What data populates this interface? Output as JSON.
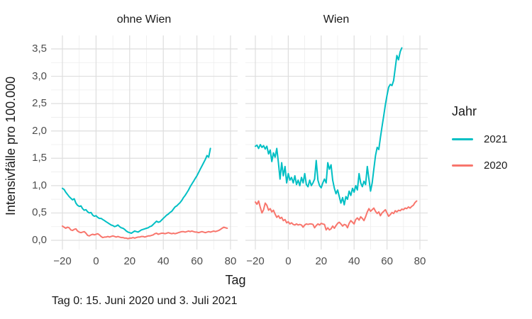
{
  "chart_data": {
    "type": "line",
    "xlabel": "Tag",
    "ylabel": "Intensivfälle pro 100.000",
    "caption": "Tag 0: 15. Juni 2020 und 3. Juli 2021",
    "x_ticks": [
      -20,
      0,
      20,
      40,
      60,
      80
    ],
    "x_tick_labels": [
      "−20",
      "0",
      "20",
      "40",
      "60",
      "80"
    ],
    "y_ticks": [
      0,
      0.5,
      1,
      1.5,
      2,
      2.5,
      3,
      3.5
    ],
    "y_tick_labels": [
      "0,0",
      "0,5",
      "1,0",
      "1,5",
      "2,0",
      "2,5",
      "3,0",
      "3,5"
    ],
    "xlim": [
      -26,
      84
    ],
    "ylim": [
      -0.17,
      3.72
    ],
    "grid": true,
    "style": {
      "background": "#FFFFFF",
      "grid_major_color": "#DEDEDE",
      "grid_minor_color": "#EDEDED",
      "axis_text_color": "#4D4D4D",
      "text_color": "#1A1A1A"
    },
    "legend": {
      "title": "Jahr",
      "position": "right",
      "entries": [
        {
          "label": "2021",
          "color": "#00BFC4"
        },
        {
          "label": "2020",
          "color": "#F8766D"
        }
      ]
    },
    "facets": [
      {
        "label": "ohne Wien",
        "series": [
          {
            "name": "2021",
            "color": "#00BFC4",
            "x_start": -20,
            "values": [
              0.95,
              0.93,
              0.88,
              0.84,
              0.8,
              0.77,
              0.74,
              0.76,
              0.68,
              0.64,
              0.62,
              0.63,
              0.58,
              0.55,
              0.56,
              0.52,
              0.5,
              0.51,
              0.46,
              0.44,
              0.45,
              0.42,
              0.4,
              0.4,
              0.38,
              0.36,
              0.34,
              0.32,
              0.3,
              0.28,
              0.27,
              0.25,
              0.26,
              0.28,
              0.25,
              0.23,
              0.22,
              0.2,
              0.17,
              0.15,
              0.14,
              0.13,
              0.15,
              0.17,
              0.16,
              0.15,
              0.17,
              0.19,
              0.2,
              0.21,
              0.22,
              0.23,
              0.25,
              0.26,
              0.29,
              0.32,
              0.35,
              0.33,
              0.34,
              0.37,
              0.4,
              0.43,
              0.46,
              0.48,
              0.51,
              0.53,
              0.57,
              0.61,
              0.63,
              0.66,
              0.69,
              0.73,
              0.78,
              0.82,
              0.87,
              0.92,
              0.98,
              1.03,
              1.08,
              1.13,
              1.18,
              1.24,
              1.3,
              1.36,
              1.42,
              1.48,
              1.55,
              1.52,
              1.68
            ]
          },
          {
            "name": "2020",
            "color": "#F8766D",
            "x_start": -20,
            "values": [
              0.26,
              0.24,
              0.22,
              0.24,
              0.23,
              0.19,
              0.18,
              0.2,
              0.21,
              0.17,
              0.15,
              0.14,
              0.15,
              0.16,
              0.13,
              0.09,
              0.08,
              0.1,
              0.11,
              0.1,
              0.11,
              0.12,
              0.1,
              0.07,
              0.05,
              0.06,
              0.06,
              0.07,
              0.06,
              0.07,
              0.08,
              0.07,
              0.06,
              0.07,
              0.06,
              0.05,
              0.05,
              0.04,
              0.04,
              0.03,
              0.04,
              0.04,
              0.05,
              0.04,
              0.05,
              0.06,
              0.06,
              0.07,
              0.07,
              0.06,
              0.07,
              0.08,
              0.08,
              0.09,
              0.1,
              0.12,
              0.13,
              0.11,
              0.12,
              0.13,
              0.13,
              0.12,
              0.13,
              0.14,
              0.13,
              0.12,
              0.13,
              0.12,
              0.13,
              0.14,
              0.15,
              0.16,
              0.16,
              0.15,
              0.16,
              0.17,
              0.16,
              0.17,
              0.16,
              0.15,
              0.15,
              0.14,
              0.15,
              0.16,
              0.15,
              0.14,
              0.15,
              0.16,
              0.15,
              0.16,
              0.17,
              0.16,
              0.17,
              0.18,
              0.2,
              0.22,
              0.24,
              0.23,
              0.22
            ]
          }
        ]
      },
      {
        "label": "Wien",
        "series": [
          {
            "name": "2021",
            "color": "#00BFC4",
            "x_start": -20,
            "values": [
              1.72,
              1.74,
              1.68,
              1.75,
              1.7,
              1.73,
              1.67,
              1.72,
              1.58,
              1.65,
              1.44,
              1.6,
              1.52,
              1.68,
              1.42,
              1.12,
              1.42,
              1.18,
              1.35,
              1.05,
              1.22,
              1.1,
              1.15,
              1.05,
              1.18,
              1.02,
              1.1,
              1.0,
              1.15,
              1.05,
              1.22,
              1.02,
              0.98,
              1.1,
              1.0,
              1.05,
              1.12,
              1.46,
              1.1,
              1.0,
              0.96,
              1.05,
              1.12,
              1.05,
              1.42,
              1.3,
              1.38,
              1.1,
              0.95,
              0.85,
              0.92,
              0.8,
              0.68,
              0.78,
              0.65,
              0.8,
              0.75,
              0.9,
              0.82,
              0.95,
              0.88,
              1.0,
              0.92,
              1.22,
              1.05,
              0.98,
              1.08,
              1.02,
              1.35,
              1.12,
              0.9,
              1.05,
              1.3,
              1.55,
              1.7,
              1.66,
              1.88,
              2.08,
              2.28,
              2.48,
              2.65,
              2.8,
              2.85,
              2.83,
              2.92,
              3.15,
              3.38,
              3.3,
              3.45,
              3.52
            ]
          },
          {
            "name": "2020",
            "color": "#F8766D",
            "x_start": -20,
            "values": [
              0.7,
              0.66,
              0.72,
              0.6,
              0.5,
              0.56,
              0.68,
              0.64,
              0.55,
              0.58,
              0.52,
              0.55,
              0.48,
              0.42,
              0.45,
              0.4,
              0.42,
              0.36,
              0.38,
              0.32,
              0.34,
              0.3,
              0.32,
              0.29,
              0.28,
              0.3,
              0.28,
              0.29,
              0.28,
              0.24,
              0.28,
              0.3,
              0.29,
              0.3,
              0.3,
              0.29,
              0.23,
              0.27,
              0.3,
              0.28,
              0.31,
              0.3,
              0.29,
              0.19,
              0.23,
              0.19,
              0.21,
              0.26,
              0.22,
              0.27,
              0.31,
              0.33,
              0.3,
              0.26,
              0.29,
              0.28,
              0.23,
              0.31,
              0.36,
              0.33,
              0.3,
              0.38,
              0.41,
              0.37,
              0.43,
              0.4,
              0.36,
              0.43,
              0.52,
              0.58,
              0.53,
              0.56,
              0.59,
              0.53,
              0.49,
              0.52,
              0.45,
              0.5,
              0.53,
              0.56,
              0.5,
              0.44,
              0.47,
              0.51,
              0.49,
              0.54,
              0.52,
              0.55,
              0.54,
              0.57,
              0.56,
              0.59,
              0.58,
              0.61,
              0.59,
              0.62,
              0.64,
              0.69,
              0.72
            ]
          }
        ]
      }
    ]
  }
}
